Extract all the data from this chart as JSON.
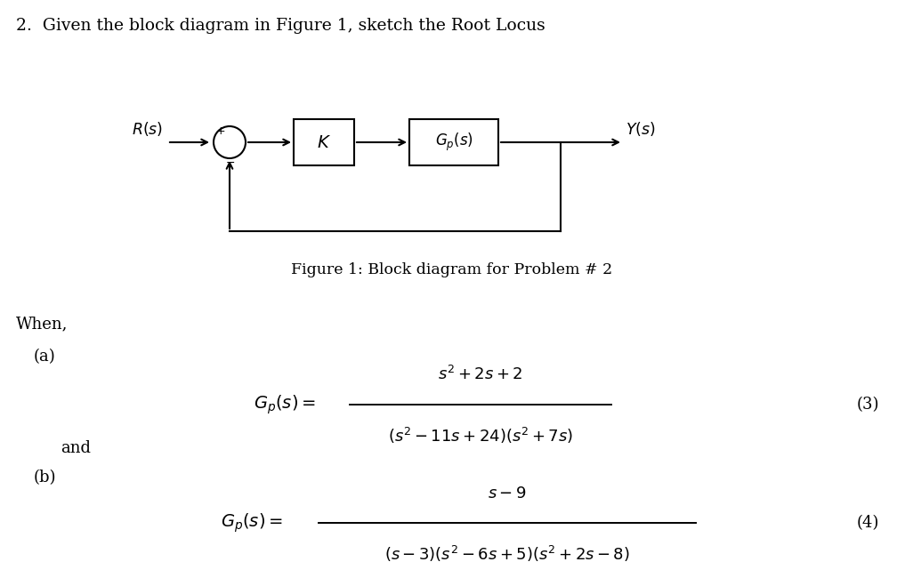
{
  "title_text": "2.  Given the block diagram in Figure 1, sketch the Root Locus",
  "figure_caption": "Figure 1: Block diagram for Problem # 2",
  "when_text": "When,",
  "a_label": "(a)",
  "b_label": "(b)",
  "and_text": "and",
  "eq_number_a": "(3)",
  "eq_number_b": "(4)",
  "bg_color": "#ffffff",
  "text_color": "#000000",
  "font_size_title": 13.5,
  "font_size_body": 13,
  "font_size_math": 13,
  "font_size_caption": 12.5
}
